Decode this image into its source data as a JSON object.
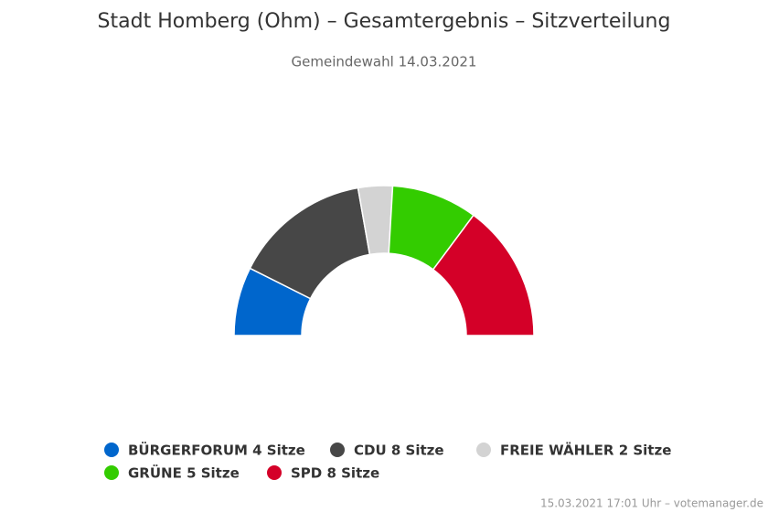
{
  "chart_data": {
    "type": "donut",
    "title": "Stadt Homberg (Ohm) – Gesamtergebnis – Sitzverteilung",
    "subtitle": "Gemeindewahl 14.03.2021",
    "categories": [
      "BÜRGERFORUM 4 Sitze",
      "CDU 8 Sitze",
      "FREIE WÄHLER 2 Sitze",
      "GRÜNE 5 Sitze",
      "SPD 8 Sitze"
    ],
    "values": [
      4,
      8,
      2,
      5,
      8
    ],
    "colors": [
      "#0066cc",
      "#474747",
      "#d3d3d3",
      "#33cc00",
      "#d40028"
    ],
    "credits": "15.03.2021 17:01 Uhr – votemanager.de"
  }
}
